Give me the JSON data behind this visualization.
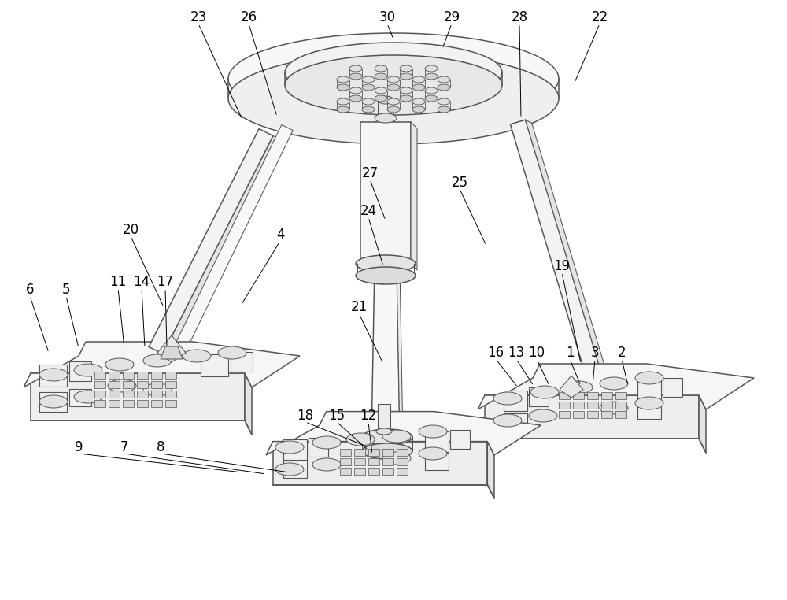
{
  "background_color": "#ffffff",
  "line_color": "#555555",
  "figsize": [
    10.0,
    7.62
  ],
  "dpi": 100,
  "labels": [
    [
      "22",
      762,
      22,
      730,
      105
    ],
    [
      "28",
      660,
      22,
      662,
      150
    ],
    [
      "29",
      574,
      22,
      562,
      62
    ],
    [
      "30",
      492,
      22,
      500,
      50
    ],
    [
      "26",
      316,
      22,
      352,
      148
    ],
    [
      "23",
      252,
      22,
      308,
      152
    ],
    [
      "27",
      470,
      220,
      490,
      280
    ],
    [
      "24",
      468,
      268,
      487,
      338
    ],
    [
      "25",
      584,
      232,
      618,
      312
    ],
    [
      "20",
      166,
      292,
      208,
      390
    ],
    [
      "4",
      356,
      298,
      306,
      388
    ],
    [
      "21",
      456,
      390,
      487,
      462
    ],
    [
      "6",
      38,
      368,
      62,
      448
    ],
    [
      "5",
      84,
      368,
      100,
      442
    ],
    [
      "11",
      150,
      358,
      158,
      442
    ],
    [
      "14",
      180,
      358,
      184,
      442
    ],
    [
      "17",
      210,
      358,
      212,
      442
    ],
    [
      "19",
      714,
      338,
      738,
      462
    ],
    [
      "16",
      630,
      448,
      658,
      492
    ],
    [
      "13",
      656,
      448,
      678,
      490
    ],
    [
      "10",
      682,
      448,
      698,
      490
    ],
    [
      "1",
      724,
      448,
      738,
      490
    ],
    [
      "3",
      756,
      448,
      753,
      490
    ],
    [
      "2",
      790,
      448,
      798,
      490
    ],
    [
      "18",
      388,
      528,
      466,
      567
    ],
    [
      "15",
      428,
      528,
      468,
      572
    ],
    [
      "12",
      468,
      528,
      473,
      577
    ],
    [
      "9",
      100,
      568,
      308,
      600
    ],
    [
      "7",
      158,
      568,
      338,
      602
    ],
    [
      "8",
      204,
      568,
      368,
      600
    ]
  ]
}
